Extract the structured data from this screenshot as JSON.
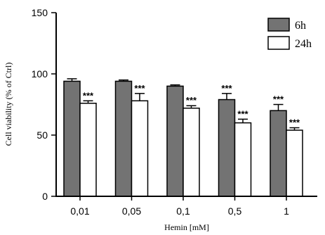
{
  "chart_data": {
    "type": "bar",
    "categories": [
      "0,01",
      "0,05",
      "0,1",
      "0,5",
      "1"
    ],
    "series": [
      {
        "name": "6h",
        "color": "#737373",
        "values": [
          94,
          94,
          90,
          79,
          70
        ],
        "errors": [
          2,
          1,
          1,
          5,
          5
        ],
        "significance": [
          "",
          "",
          "",
          "***",
          "***"
        ]
      },
      {
        "name": "24h",
        "color": "#ffffff",
        "values": [
          76,
          78,
          72,
          60,
          54
        ],
        "errors": [
          2,
          6,
          2,
          3,
          2
        ],
        "significance": [
          "***",
          "***",
          "***",
          "***",
          "***"
        ]
      }
    ],
    "xlabel": "Hemin [mM]",
    "ylabel": "Cell viability (% of Ctrl)",
    "ylim": [
      0,
      150
    ],
    "yticks": [
      0,
      50,
      100,
      150
    ],
    "legend_position": "top-right",
    "grid": false
  }
}
